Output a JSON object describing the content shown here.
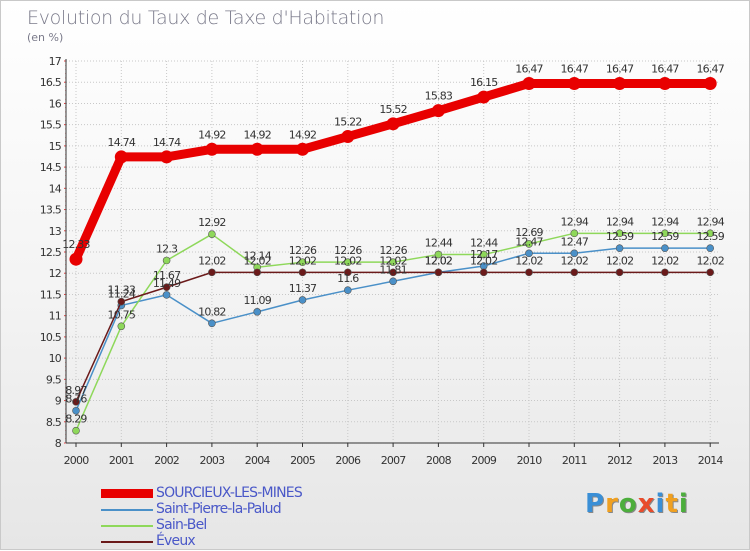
{
  "chart_data": {
    "type": "line",
    "title": "Evolution du Taux de Taxe d'Habitation",
    "ylabel": "(en %)",
    "xlabel": "",
    "ylim": [
      8,
      17
    ],
    "ytick_step": 0.5,
    "yticks": [
      "8",
      "8.5",
      "9",
      "9.5",
      "10",
      "10.5",
      "11",
      "11.5",
      "12",
      "12.5",
      "13",
      "13.5",
      "14",
      "14.5",
      "15",
      "15.5",
      "16",
      "16.5",
      "17"
    ],
    "categories": [
      "2000",
      "2001",
      "2002",
      "2003",
      "2004",
      "2005",
      "2006",
      "2007",
      "2008",
      "2009",
      "2010",
      "2011",
      "2012",
      "2013",
      "2014"
    ],
    "series": [
      {
        "name": "SOURCIEUX-LES-MINES",
        "color": "#e80000",
        "values": [
          12.33,
          14.74,
          14.74,
          14.92,
          14.92,
          14.92,
          15.22,
          15.52,
          15.83,
          16.15,
          16.47,
          16.47,
          16.47,
          16.47,
          16.47
        ],
        "labels": [
          "12.33",
          "14.74",
          "14.74",
          "14.92",
          "14.92",
          "14.92",
          "15.22",
          "15.52",
          "15.83",
          "16.15",
          "16.47",
          "16.47",
          "16.47",
          "16.47",
          "16.47"
        ]
      },
      {
        "name": "Saint-Pierre-la-Palud",
        "color": "#4a90c8",
        "values": [
          8.76,
          11.24,
          11.49,
          10.82,
          11.09,
          11.37,
          11.6,
          11.81,
          12.02,
          12.17,
          12.47,
          12.47,
          12.59,
          12.59,
          12.59
        ],
        "labels": [
          "8.76",
          "11.24",
          "11.49",
          "10.82",
          "11.09",
          "11.37",
          "11.6",
          "11.81",
          "12.02",
          "12.17",
          "12.47",
          "12.47",
          "12.59",
          "12.59",
          "12.59"
        ]
      },
      {
        "name": "Sain-Bel",
        "color": "#8ed85a",
        "values": [
          8.29,
          10.75,
          12.3,
          12.92,
          12.14,
          12.26,
          12.26,
          12.26,
          12.44,
          12.44,
          12.69,
          12.94,
          12.94,
          12.94,
          12.94
        ],
        "labels": [
          "8.29",
          "10.75",
          "12.3",
          "12.92",
          "12.14",
          "12.26",
          "12.26",
          "12.26",
          "12.44",
          "12.44",
          "12.69",
          "12.94",
          "12.94",
          "12.94",
          "12.94"
        ]
      },
      {
        "name": "Éveux",
        "color": "#6b1a1a",
        "values": [
          8.97,
          11.33,
          11.67,
          12.02,
          12.02,
          12.02,
          12.02,
          12.02,
          12.02,
          12.02,
          12.02,
          12.02,
          12.02,
          12.02,
          12.02
        ],
        "labels": [
          "8.97",
          "11.33",
          "11.67",
          "12.02",
          "12.02",
          "12.02",
          "12.02",
          "12.02",
          "12.02",
          "12.02",
          "12.02",
          "12.02",
          "12.02",
          "12.02",
          "12.02"
        ]
      }
    ],
    "legend_position": "bottom-left"
  },
  "logo": {
    "letters": [
      "P",
      "r",
      "o",
      "x",
      "i",
      "t",
      "i"
    ],
    "colors": [
      "#3a8fd6",
      "#f0a020",
      "#4cae3c",
      "#e84c2c",
      "#3a8fd6",
      "#f0a020",
      "#4cae3c"
    ]
  }
}
